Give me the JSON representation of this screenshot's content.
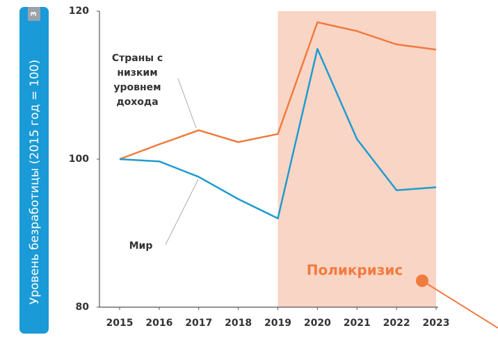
{
  "chart_data": {
    "type": "line",
    "ylabel": "Уровень безработицы (2015 год = 100)",
    "ylabel_note": "3",
    "x": [
      2015,
      2016,
      2017,
      2018,
      2019,
      2020,
      2021,
      2022,
      2023
    ],
    "xlim": [
      2015,
      2023
    ],
    "xticks": [
      2015,
      2016,
      2017,
      2018,
      2019,
      2020,
      2021,
      2022,
      2023
    ],
    "ylim": [
      80,
      120
    ],
    "yticks": [
      80,
      100,
      120
    ],
    "grid": false,
    "series": [
      {
        "name": "Страны с низким уровнем дохода",
        "color": "#f07b3f",
        "values": [
          100,
          102,
          103.9,
          102.3,
          103.4,
          118.5,
          117.3,
          115.5,
          114.8
        ]
      },
      {
        "name": "Мир",
        "color": "#1f9bd0",
        "values": [
          100,
          99.7,
          97.6,
          94.6,
          92.0,
          114.9,
          102.7,
          95.8,
          96.2
        ]
      }
    ],
    "shaded_region": {
      "x": [
        2019,
        2023
      ],
      "label": "Поликризис",
      "color": "#f9d5c5"
    }
  }
}
